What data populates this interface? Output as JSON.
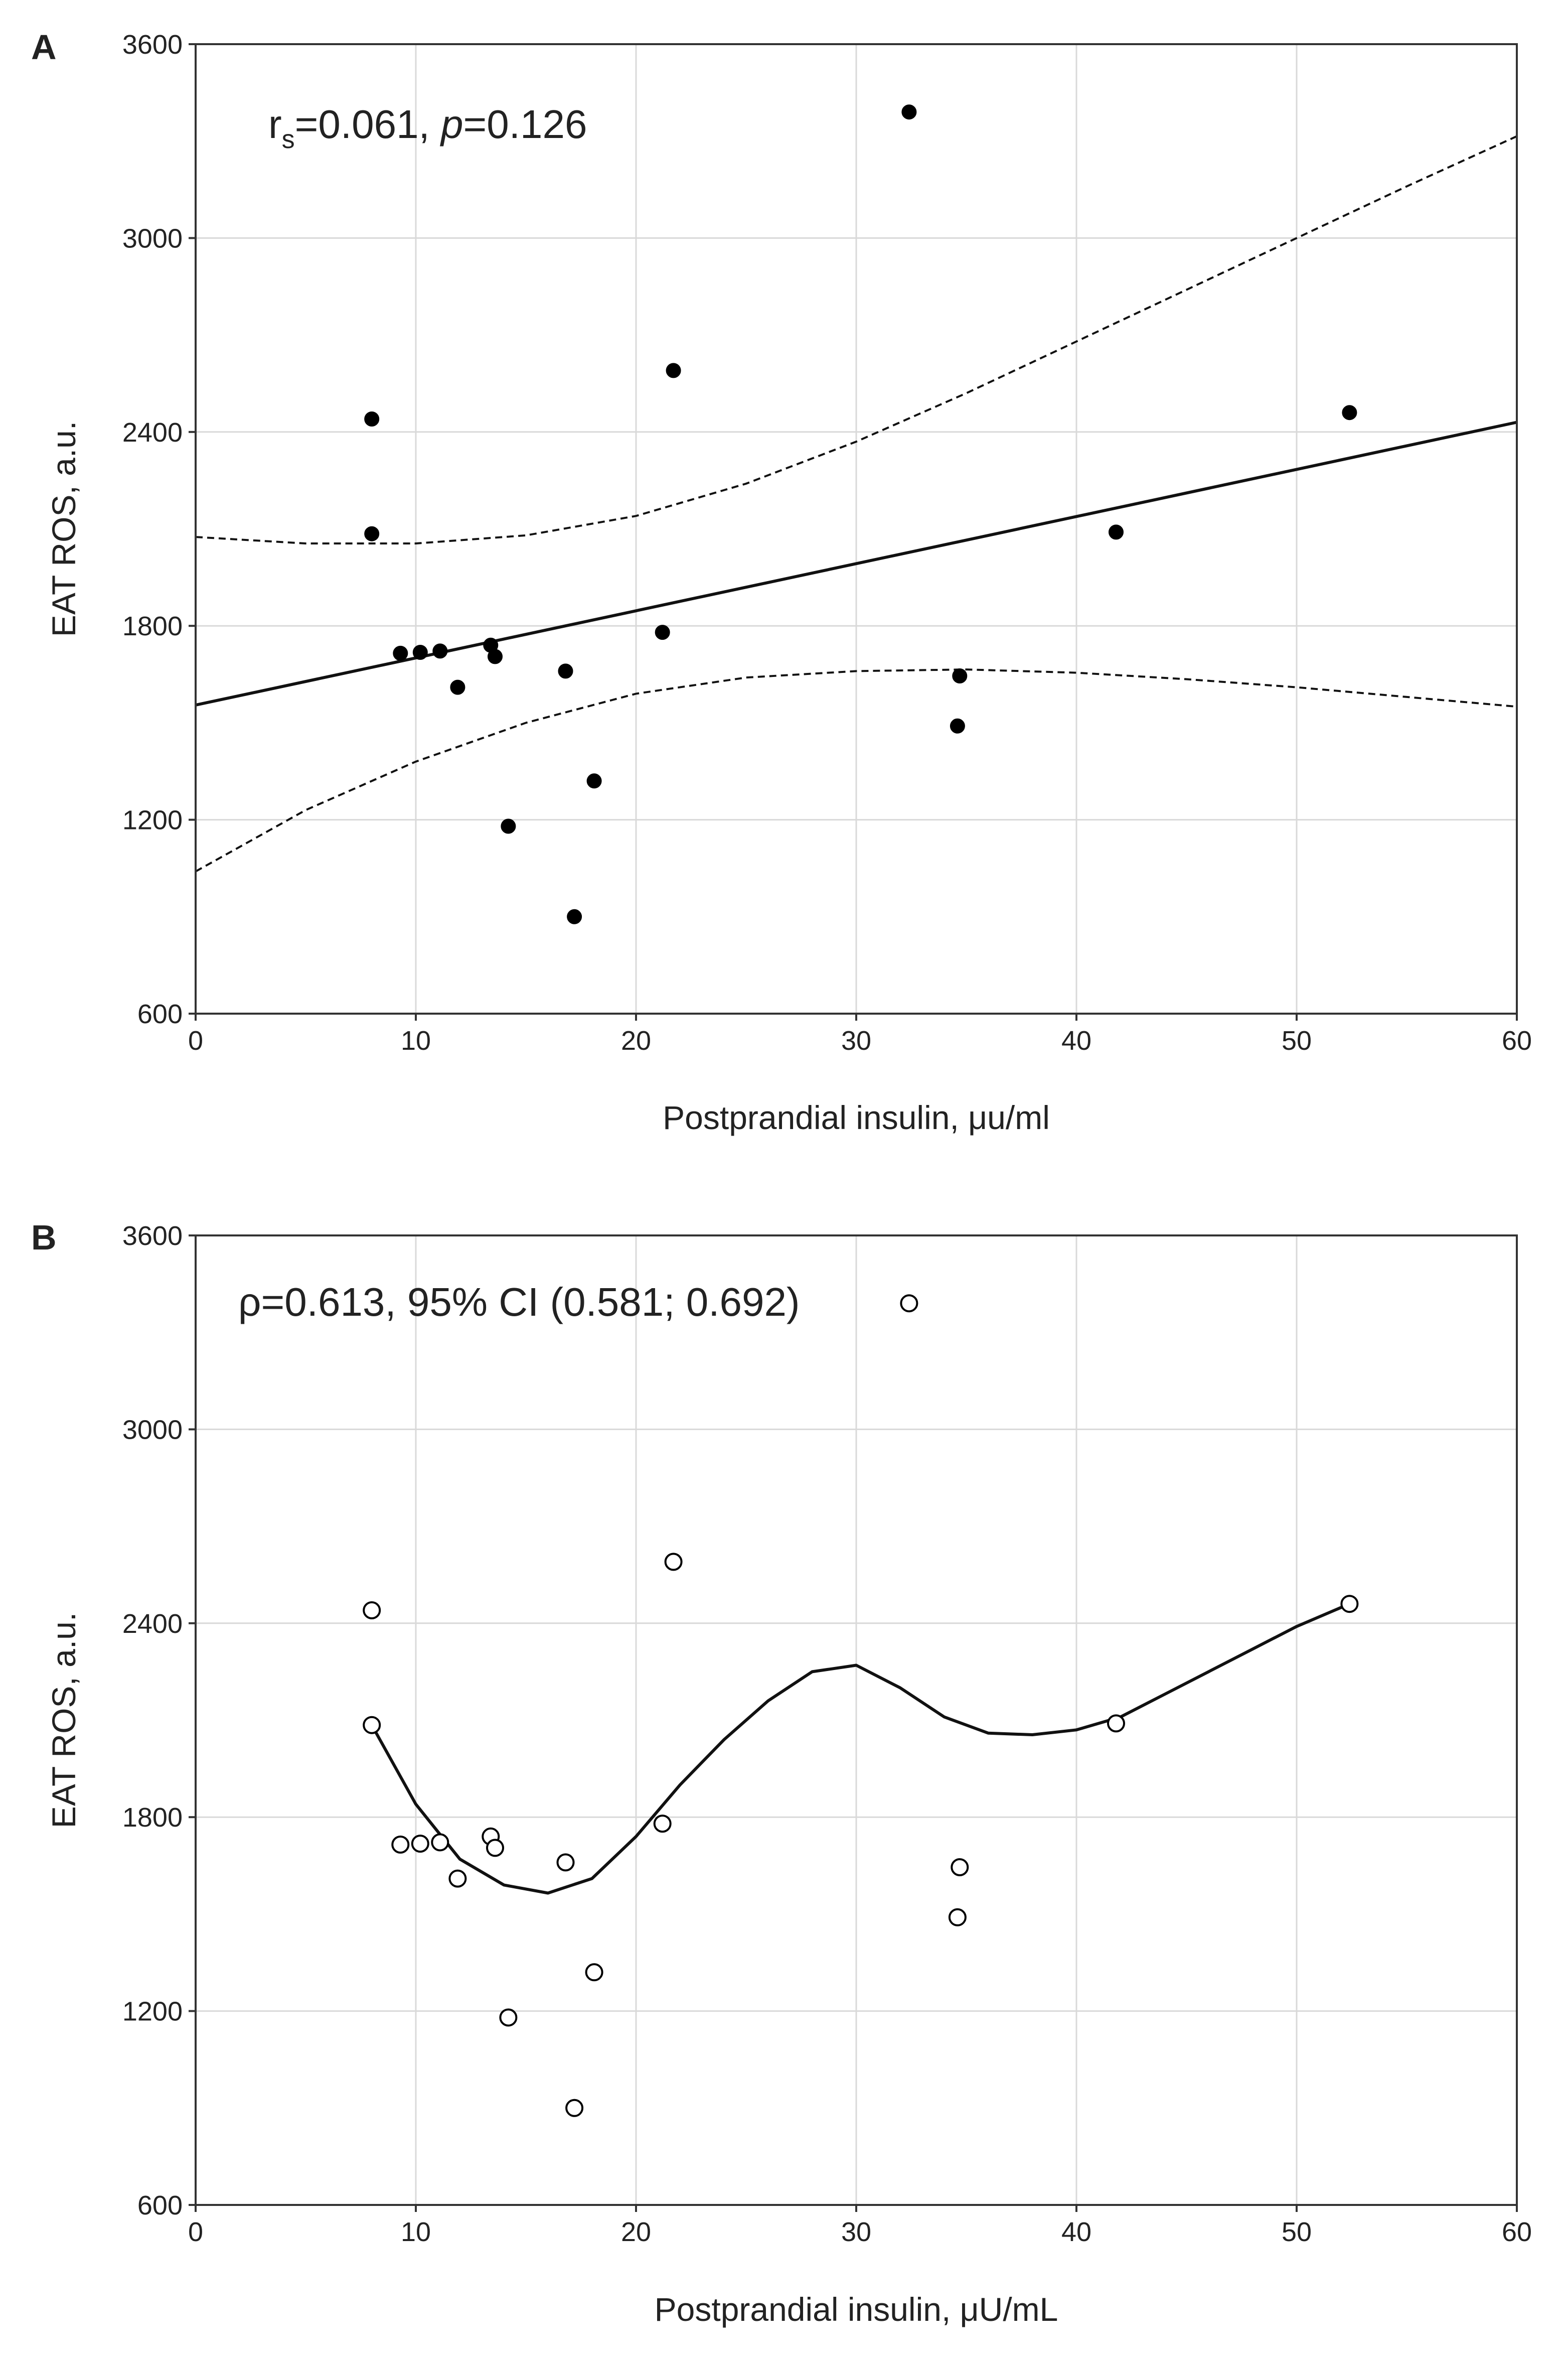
{
  "chart_data": [
    {
      "panel": "A",
      "type": "scatter",
      "xlabel": "Postprandial insulin, μu/ml",
      "ylabel": "EAT ROS, a.u.",
      "xlim": [
        0,
        60
      ],
      "ylim": [
        600,
        3600
      ],
      "xticks": [
        0,
        10,
        20,
        30,
        40,
        50,
        60
      ],
      "yticks": [
        600,
        1200,
        1800,
        2400,
        3000,
        3600
      ],
      "grid": true,
      "marker": "filled",
      "annotation": {
        "r_symbol": "r",
        "r_sub": "s",
        "r_value": "=0.061, ",
        "p_symbol": "p",
        "p_value": "=0.126"
      },
      "points": [
        {
          "x": 8.0,
          "y": 2440
        },
        {
          "x": 8.0,
          "y": 2085
        },
        {
          "x": 9.3,
          "y": 1715
        },
        {
          "x": 10.2,
          "y": 1718
        },
        {
          "x": 11.1,
          "y": 1722
        },
        {
          "x": 11.9,
          "y": 1610
        },
        {
          "x": 13.4,
          "y": 1740
        },
        {
          "x": 13.6,
          "y": 1705
        },
        {
          "x": 14.2,
          "y": 1180
        },
        {
          "x": 16.8,
          "y": 1660
        },
        {
          "x": 17.2,
          "y": 900
        },
        {
          "x": 18.1,
          "y": 1320
        },
        {
          "x": 21.2,
          "y": 1780
        },
        {
          "x": 21.7,
          "y": 2590
        },
        {
          "x": 32.4,
          "y": 3390
        },
        {
          "x": 34.6,
          "y": 1490
        },
        {
          "x": 34.7,
          "y": 1645
        },
        {
          "x": 41.8,
          "y": 2090
        },
        {
          "x": 52.4,
          "y": 2460
        }
      ],
      "fit_line": {
        "x": [
          0,
          60
        ],
        "y": [
          1555,
          2430
        ]
      },
      "ci_upper": {
        "x": [
          0,
          5,
          10,
          15,
          20,
          25,
          30,
          35,
          40,
          45,
          50,
          55,
          60
        ],
        "y": [
          2075,
          2055,
          2055,
          2080,
          2140,
          2240,
          2370,
          2520,
          2680,
          2840,
          3000,
          3160,
          3315
        ]
      },
      "ci_lower": {
        "x": [
          0,
          5,
          10,
          15,
          20,
          25,
          30,
          35,
          40,
          45,
          50,
          55,
          60
        ],
        "y": [
          1040,
          1230,
          1380,
          1500,
          1590,
          1640,
          1660,
          1665,
          1655,
          1635,
          1610,
          1580,
          1550
        ]
      }
    },
    {
      "panel": "B",
      "type": "scatter",
      "xlabel": "Postprandial insulin, μU/mL",
      "ylabel": "EAT ROS, a.u.",
      "xlim": [
        0,
        60
      ],
      "ylim": [
        600,
        3600
      ],
      "xticks": [
        0,
        10,
        20,
        30,
        40,
        50,
        60
      ],
      "yticks": [
        600,
        1200,
        1800,
        2400,
        3000,
        3600
      ],
      "grid": true,
      "marker": "open",
      "annotation": {
        "text": "ρ=0.613, 95% CI (0.581; 0.692)"
      },
      "points": [
        {
          "x": 8.0,
          "y": 2440
        },
        {
          "x": 8.0,
          "y": 2085
        },
        {
          "x": 9.3,
          "y": 1715
        },
        {
          "x": 10.2,
          "y": 1718
        },
        {
          "x": 11.1,
          "y": 1722
        },
        {
          "x": 11.9,
          "y": 1610
        },
        {
          "x": 13.4,
          "y": 1740
        },
        {
          "x": 13.6,
          "y": 1705
        },
        {
          "x": 14.2,
          "y": 1180
        },
        {
          "x": 16.8,
          "y": 1660
        },
        {
          "x": 17.2,
          "y": 900
        },
        {
          "x": 18.1,
          "y": 1320
        },
        {
          "x": 21.2,
          "y": 1780
        },
        {
          "x": 21.7,
          "y": 2590
        },
        {
          "x": 32.4,
          "y": 3390
        },
        {
          "x": 34.6,
          "y": 1490
        },
        {
          "x": 34.7,
          "y": 1645
        },
        {
          "x": 41.8,
          "y": 2090
        },
        {
          "x": 52.4,
          "y": 2460
        }
      ],
      "smooth_curve": {
        "x": [
          8,
          10,
          12,
          14,
          16,
          18,
          20,
          22,
          24,
          26,
          28,
          30,
          32,
          34,
          36,
          38,
          40,
          42,
          44,
          46,
          48,
          50,
          52.4
        ],
        "y": [
          2085,
          1840,
          1670,
          1590,
          1565,
          1610,
          1740,
          1900,
          2040,
          2160,
          2250,
          2270,
          2200,
          2110,
          2060,
          2055,
          2070,
          2110,
          2180,
          2250,
          2320,
          2390,
          2460
        ]
      }
    }
  ]
}
